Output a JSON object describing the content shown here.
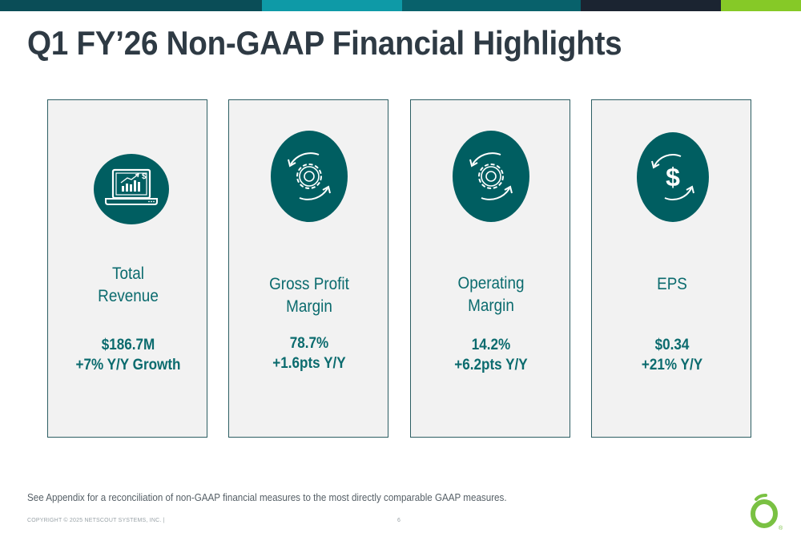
{
  "header": {
    "title": "Q1 FY’26 Non-GAAP Financial Highlights",
    "bar_colors": [
      "#0a4d57",
      "#0e9aa7",
      "#08616b",
      "#1b2431",
      "#86c927"
    ]
  },
  "cards": [
    {
      "icon": "laptop-chart-icon",
      "label_lines": [
        "Total",
        "Revenue"
      ],
      "value_lines": [
        "$186.7M",
        "+7% Y/Y Growth"
      ]
    },
    {
      "icon": "gear-cycle-icon",
      "label_lines": [
        "Gross Profit",
        "Margin"
      ],
      "value_lines": [
        "78.7%",
        "+1.6pts Y/Y"
      ]
    },
    {
      "icon": "gear-cycle-icon",
      "label_lines": [
        "Operating",
        "Margin"
      ],
      "value_lines": [
        "14.2%",
        "+6.2pts Y/Y"
      ]
    },
    {
      "icon": "dollar-cycle-icon",
      "label_lines": [
        "EPS"
      ],
      "value_lines": [
        "$0.34",
        "+21% Y/Y"
      ]
    }
  ],
  "colors": {
    "accent": "#005e61",
    "text_teal": "#0b6b6e",
    "card_bg": "#f2f2f2",
    "logo_green": "#7ac143"
  },
  "footer": {
    "note": "See Appendix for a reconciliation of non-GAAP financial measures to the most directly comparable GAAP measures.",
    "copyright": "COPYRIGHT © 2025 NETSCOUT SYSTEMS, INC.  |",
    "page_number": "6",
    "logo_mark": "®"
  }
}
